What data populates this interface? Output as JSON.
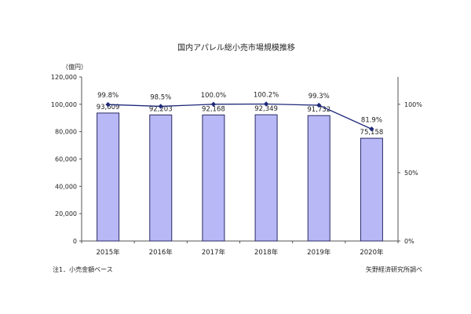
{
  "chart_data": {
    "type": "bar",
    "title": "国内アパレル総小売市場規模推移",
    "y_unit_label": "（億円）",
    "categories": [
      "2015年",
      "2016年",
      "2017年",
      "2018年",
      "2019年",
      "2020年"
    ],
    "series": [
      {
        "type": "bar",
        "values": [
          93609,
          92203,
          92168,
          92349,
          91732,
          75158
        ],
        "labels": [
          "93,609",
          "92,203",
          "92,168",
          "92,349",
          "91,732",
          "75,158"
        ]
      },
      {
        "type": "line",
        "axis": "right",
        "values": [
          99.8,
          98.5,
          100.0,
          100.2,
          99.3,
          81.9
        ],
        "labels": [
          "99.8%",
          "98.5%",
          "100.0%",
          "100.2%",
          "99.3%",
          "81.9%"
        ]
      }
    ],
    "ylim_left": [
      0,
      120000
    ],
    "yticks_left": [
      "0",
      "20,000",
      "40,000",
      "60,000",
      "80,000",
      "100,000",
      "120,000"
    ],
    "ylim_right": [
      0,
      120
    ],
    "yticks_right": [
      {
        "value": 0,
        "label": "0%"
      },
      {
        "value": 50,
        "label": "50%"
      },
      {
        "value": 100,
        "label": "100%"
      }
    ],
    "grid": false,
    "colors": {
      "bar_fill": "#b8b8f6",
      "bar_stroke": "#2a2a66",
      "line": "#1f2a7a",
      "axis": "#555555"
    }
  },
  "footer": {
    "note": "注1．小売金額ベース",
    "source": "矢野経済研究所調べ"
  }
}
